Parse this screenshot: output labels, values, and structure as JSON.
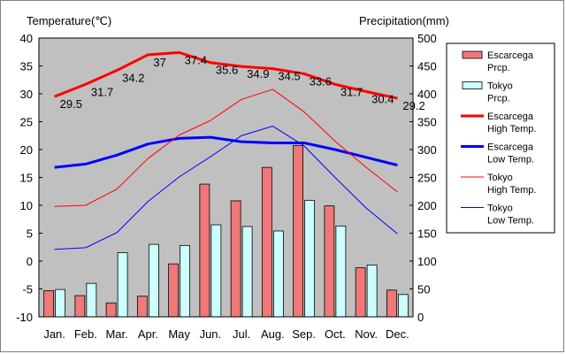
{
  "chart_data": {
    "type": "bar+line",
    "title": "",
    "ylabel_left": "Temperature(℃)",
    "ylabel_right": "Precipitation(mm)",
    "ylim_left": [
      -10,
      40
    ],
    "ylim_right": [
      0,
      500
    ],
    "yticks_left": [
      "40",
      "35",
      "30",
      "25",
      "20",
      "15",
      "10",
      "5",
      "0",
      "-5",
      "-10"
    ],
    "yticks_right": [
      "500",
      "450",
      "400",
      "350",
      "300",
      "250",
      "200",
      "150",
      "100",
      "50",
      "0"
    ],
    "categories": [
      "Jan.",
      "Feb.",
      "Mar.",
      "Apr.",
      "May",
      "Jun.",
      "Jul.",
      "Aug.",
      "Sep.",
      "Oct.",
      "Nov.",
      "Dec."
    ],
    "grid": false,
    "legend_position": "right",
    "bar_series": [
      {
        "name": "Escarcega\nPrcp.",
        "color": "#f07878",
        "values": [
          47,
          38,
          25,
          37,
          95,
          238,
          208,
          268,
          307,
          199,
          88,
          48
        ]
      },
      {
        "name": "Tokyo\nPrcp.",
        "color": "#ccffff",
        "values": [
          49,
          60,
          115,
          130,
          128,
          165,
          162,
          154,
          209,
          163,
          93,
          40
        ]
      }
    ],
    "line_series": [
      {
        "name": "Escarcega\nHigh Temp.",
        "color": "#ff0000",
        "thick": true,
        "values": [
          29.5,
          31.7,
          34.2,
          37,
          37.4,
          35.6,
          34.9,
          34.5,
          33.6,
          31.7,
          30.4,
          29.2
        ],
        "labels": [
          "29.5",
          "31.7",
          "34.2",
          "37",
          "37.4",
          "35.6",
          "34.9",
          "34.5",
          "33.6",
          "31.7",
          "30.4",
          "29.2"
        ]
      },
      {
        "name": "Escarcega\nLow Temp.",
        "color": "#0000ff",
        "thick": true,
        "values": [
          16.8,
          17.4,
          19.0,
          21.0,
          22.0,
          22.2,
          21.4,
          21.2,
          21.2,
          20.0,
          18.6,
          17.2
        ]
      },
      {
        "name": "Tokyo\nHigh Temp.",
        "color": "#ff0000",
        "thick": false,
        "values": [
          9.8,
          10.0,
          12.9,
          18.4,
          22.6,
          25.2,
          29.0,
          30.8,
          26.8,
          21.5,
          16.8,
          12.4
        ]
      },
      {
        "name": "Tokyo\nLow Temp.",
        "color": "#0000ff",
        "thick": false,
        "values": [
          2.1,
          2.4,
          5.1,
          10.7,
          15.1,
          18.7,
          22.5,
          24.2,
          20.7,
          15.0,
          9.5,
          4.9
        ]
      }
    ]
  }
}
